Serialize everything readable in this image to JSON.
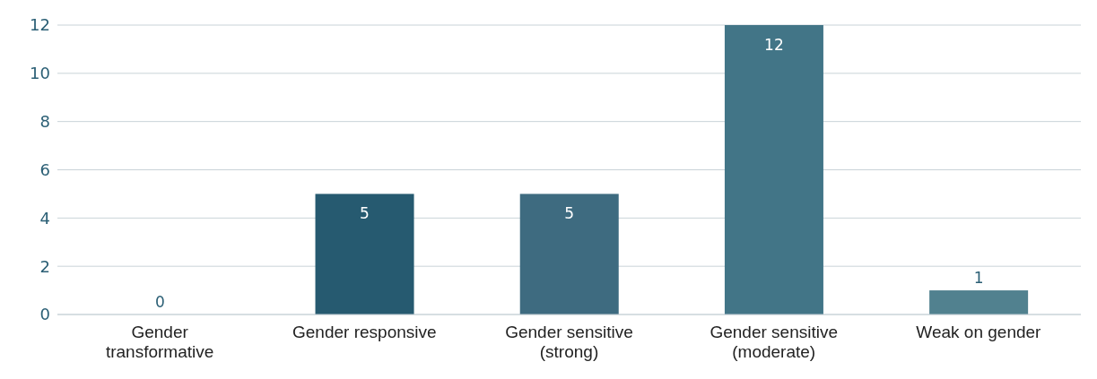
{
  "chart_data": {
    "type": "bar",
    "categories": [
      "Gender transformative",
      "Gender responsive",
      "Gender sensitive (strong)",
      "Gender sensitive (moderate)",
      "Weak on gender"
    ],
    "values": [
      0,
      5,
      5,
      12,
      1
    ],
    "colors": [
      "#3d6b7e",
      "#265a70",
      "#3e6b80",
      "#427587",
      "#51818f"
    ],
    "ylim": [
      0,
      12
    ],
    "yticks": [
      0,
      2,
      4,
      6,
      8,
      10,
      12
    ],
    "grid": "y",
    "data_labels": true
  }
}
